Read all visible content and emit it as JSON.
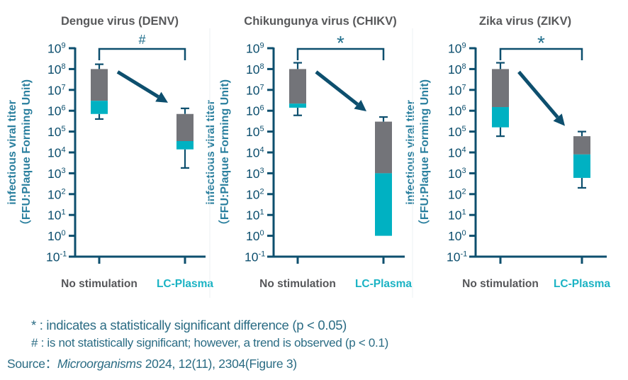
{
  "colors": {
    "axis": "#0d4f6e",
    "upper_segment": "#737479",
    "lower_segment": "#00b1c2",
    "title": "#58595b",
    "ylabel": "#2a7f9e",
    "no_stim_label": "#555659",
    "lc_plasma_label": "#1bb3c4",
    "footnote": "#2b6c84"
  },
  "chart_data": [
    {
      "type": "box",
      "title": "Dengue virus (DENV)",
      "ylabel_line1": "infectious viral titer",
      "ylabel_line2": "（FFU:Plaque Forming Unit)",
      "yscale": "log10",
      "ylim": [
        0.1,
        1000000000
      ],
      "yticks": [
        {
          "exp": "9"
        },
        {
          "exp": "8"
        },
        {
          "exp": "7"
        },
        {
          "exp": "6"
        },
        {
          "exp": "5"
        },
        {
          "exp": "4"
        },
        {
          "exp": "3"
        },
        {
          "exp": "2"
        },
        {
          "exp": "1"
        },
        {
          "exp": "0"
        },
        {
          "exp": "-1"
        }
      ],
      "categories": [
        "No stimulation",
        "LC-Plasma"
      ],
      "boxes": [
        {
          "whisker_high": 170000000,
          "q3": 100000000,
          "median": 3000000,
          "q1": 700000,
          "whisker_low": 400000
        },
        {
          "whisker_high": 1300000,
          "q3": 700000,
          "median": 35000,
          "q1": 14000,
          "whisker_low": 1800
        }
      ],
      "significance": "#",
      "annotation": "arrow from No stimulation to LC-Plasma (decrease)"
    },
    {
      "type": "box",
      "title": "Chikungunya virus (CHIKV)",
      "ylabel_line1": "infectious viral titer",
      "ylabel_line2": "（FFU:Plaque Forming Unit)",
      "yscale": "log10",
      "ylim": [
        0.1,
        1000000000
      ],
      "yticks": [
        {
          "exp": "9"
        },
        {
          "exp": "8"
        },
        {
          "exp": "7"
        },
        {
          "exp": "6"
        },
        {
          "exp": "5"
        },
        {
          "exp": "4"
        },
        {
          "exp": "3"
        },
        {
          "exp": "2"
        },
        {
          "exp": "1"
        },
        {
          "exp": "0"
        },
        {
          "exp": "-1"
        }
      ],
      "categories": [
        "No stimulation",
        "LC-Plasma"
      ],
      "boxes": [
        {
          "whisker_high": 200000000,
          "q3": 100000000,
          "median": 2200000,
          "q1": 1400000,
          "whisker_low": 600000
        },
        {
          "whisker_high": 500000,
          "q3": 300000,
          "median": 1000,
          "q1": 1,
          "whisker_low": 1
        }
      ],
      "significance": "*",
      "annotation": "arrow from No stimulation to LC-Plasma (decrease)"
    },
    {
      "type": "box",
      "title": "Zika virus (ZIKV)",
      "ylabel_line1": "infectious viral titer",
      "ylabel_line2": "（FFU:Plaque Forming Unit)",
      "yscale": "log10",
      "ylim": [
        0.1,
        1000000000
      ],
      "yticks": [
        {
          "exp": "9"
        },
        {
          "exp": "8"
        },
        {
          "exp": "7"
        },
        {
          "exp": "6"
        },
        {
          "exp": "5"
        },
        {
          "exp": "4"
        },
        {
          "exp": "3"
        },
        {
          "exp": "2"
        },
        {
          "exp": "1"
        },
        {
          "exp": "0"
        },
        {
          "exp": "-1"
        }
      ],
      "categories": [
        "No stimulation",
        "LC-Plasma"
      ],
      "boxes": [
        {
          "whisker_high": 200000000,
          "q3": 100000000,
          "median": 1500000,
          "q1": 160000,
          "whisker_low": 60000
        },
        {
          "whisker_high": 100000,
          "q3": 60000,
          "median": 8000,
          "q1": 600,
          "whisker_low": 200
        }
      ],
      "significance": "*",
      "annotation": "arrow from No stimulation to LC-Plasma (decrease)"
    }
  ],
  "footnotes": {
    "star": "* : indicates a statistically significant difference (p < 0.05)",
    "hash": "# : is not statistically significant; however, a trend is observed (p < 0.1)"
  },
  "source": {
    "prefix": "Source：",
    "journal": "Microorganisms",
    "citation": " 2024, 12(11), 2304(Figure 3)"
  }
}
